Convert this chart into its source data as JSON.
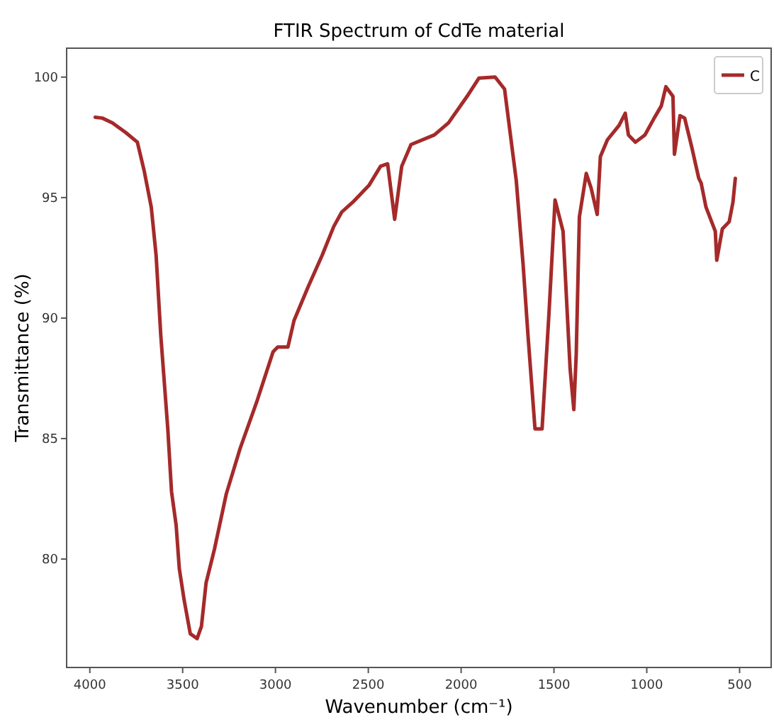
{
  "chart_data": {
    "type": "line",
    "title": "FTIR Spectrum of CdTe material",
    "xlabel": "Wavenumber (cm⁻¹)",
    "ylabel": "Transmittance (%)",
    "xlim": [
      4125,
      330
    ],
    "xticks": [
      4000,
      3500,
      3000,
      2500,
      2000,
      1500,
      1000,
      500
    ],
    "ylim": [
      75.5,
      101.2
    ],
    "yticks": [
      80,
      85,
      90,
      95,
      100
    ],
    "grid": false,
    "legend": "top right",
    "line_style": "solid",
    "marker": "none",
    "series": [
      {
        "name": "C",
        "color": "#a52a2a",
        "x": [
          3971,
          3933,
          3878,
          3807,
          3744,
          3707,
          3669,
          3643,
          3618,
          3580,
          3560,
          3535,
          3518,
          3492,
          3459,
          3422,
          3399,
          3374,
          3329,
          3265,
          3190,
          3102,
          3013,
          2988,
          2933,
          2900,
          2824,
          2749,
          2686,
          2643,
          2585,
          2497,
          2434,
          2396,
          2358,
          2320,
          2270,
          2144,
          2068,
          1968,
          1904,
          1817,
          1766,
          1703,
          1666,
          1640,
          1602,
          1564,
          1526,
          1494,
          1451,
          1413,
          1393,
          1380,
          1363,
          1326,
          1300,
          1267,
          1250,
          1212,
          1149,
          1116,
          1099,
          1061,
          1010,
          960,
          922,
          897,
          859,
          851,
          821,
          796,
          758,
          720,
          707,
          681,
          631,
          623,
          593,
          556,
          536,
          523
        ],
        "values": [
          98.33,
          98.3,
          98.1,
          97.7,
          97.3,
          96.1,
          94.6,
          92.6,
          89.3,
          85.4,
          82.8,
          81.4,
          79.6,
          78.3,
          76.9,
          76.7,
          77.2,
          79.0,
          80.4,
          82.7,
          84.6,
          86.5,
          88.6,
          88.8,
          88.8,
          89.9,
          91.3,
          92.6,
          93.8,
          94.4,
          94.8,
          95.5,
          96.3,
          96.4,
          94.1,
          96.3,
          97.2,
          97.6,
          98.1,
          99.2,
          99.96,
          100.0,
          99.5,
          95.7,
          92.2,
          89.3,
          85.4,
          85.4,
          90.3,
          94.9,
          93.6,
          87.9,
          86.2,
          88.5,
          94.2,
          96.0,
          95.4,
          94.3,
          96.7,
          97.4,
          98.0,
          98.5,
          97.6,
          97.3,
          97.6,
          98.3,
          98.8,
          99.6,
          99.2,
          96.8,
          98.4,
          98.3,
          97.1,
          95.8,
          95.6,
          94.6,
          93.6,
          92.4,
          93.7,
          94.0,
          94.8,
          95.8
        ]
      }
    ]
  }
}
